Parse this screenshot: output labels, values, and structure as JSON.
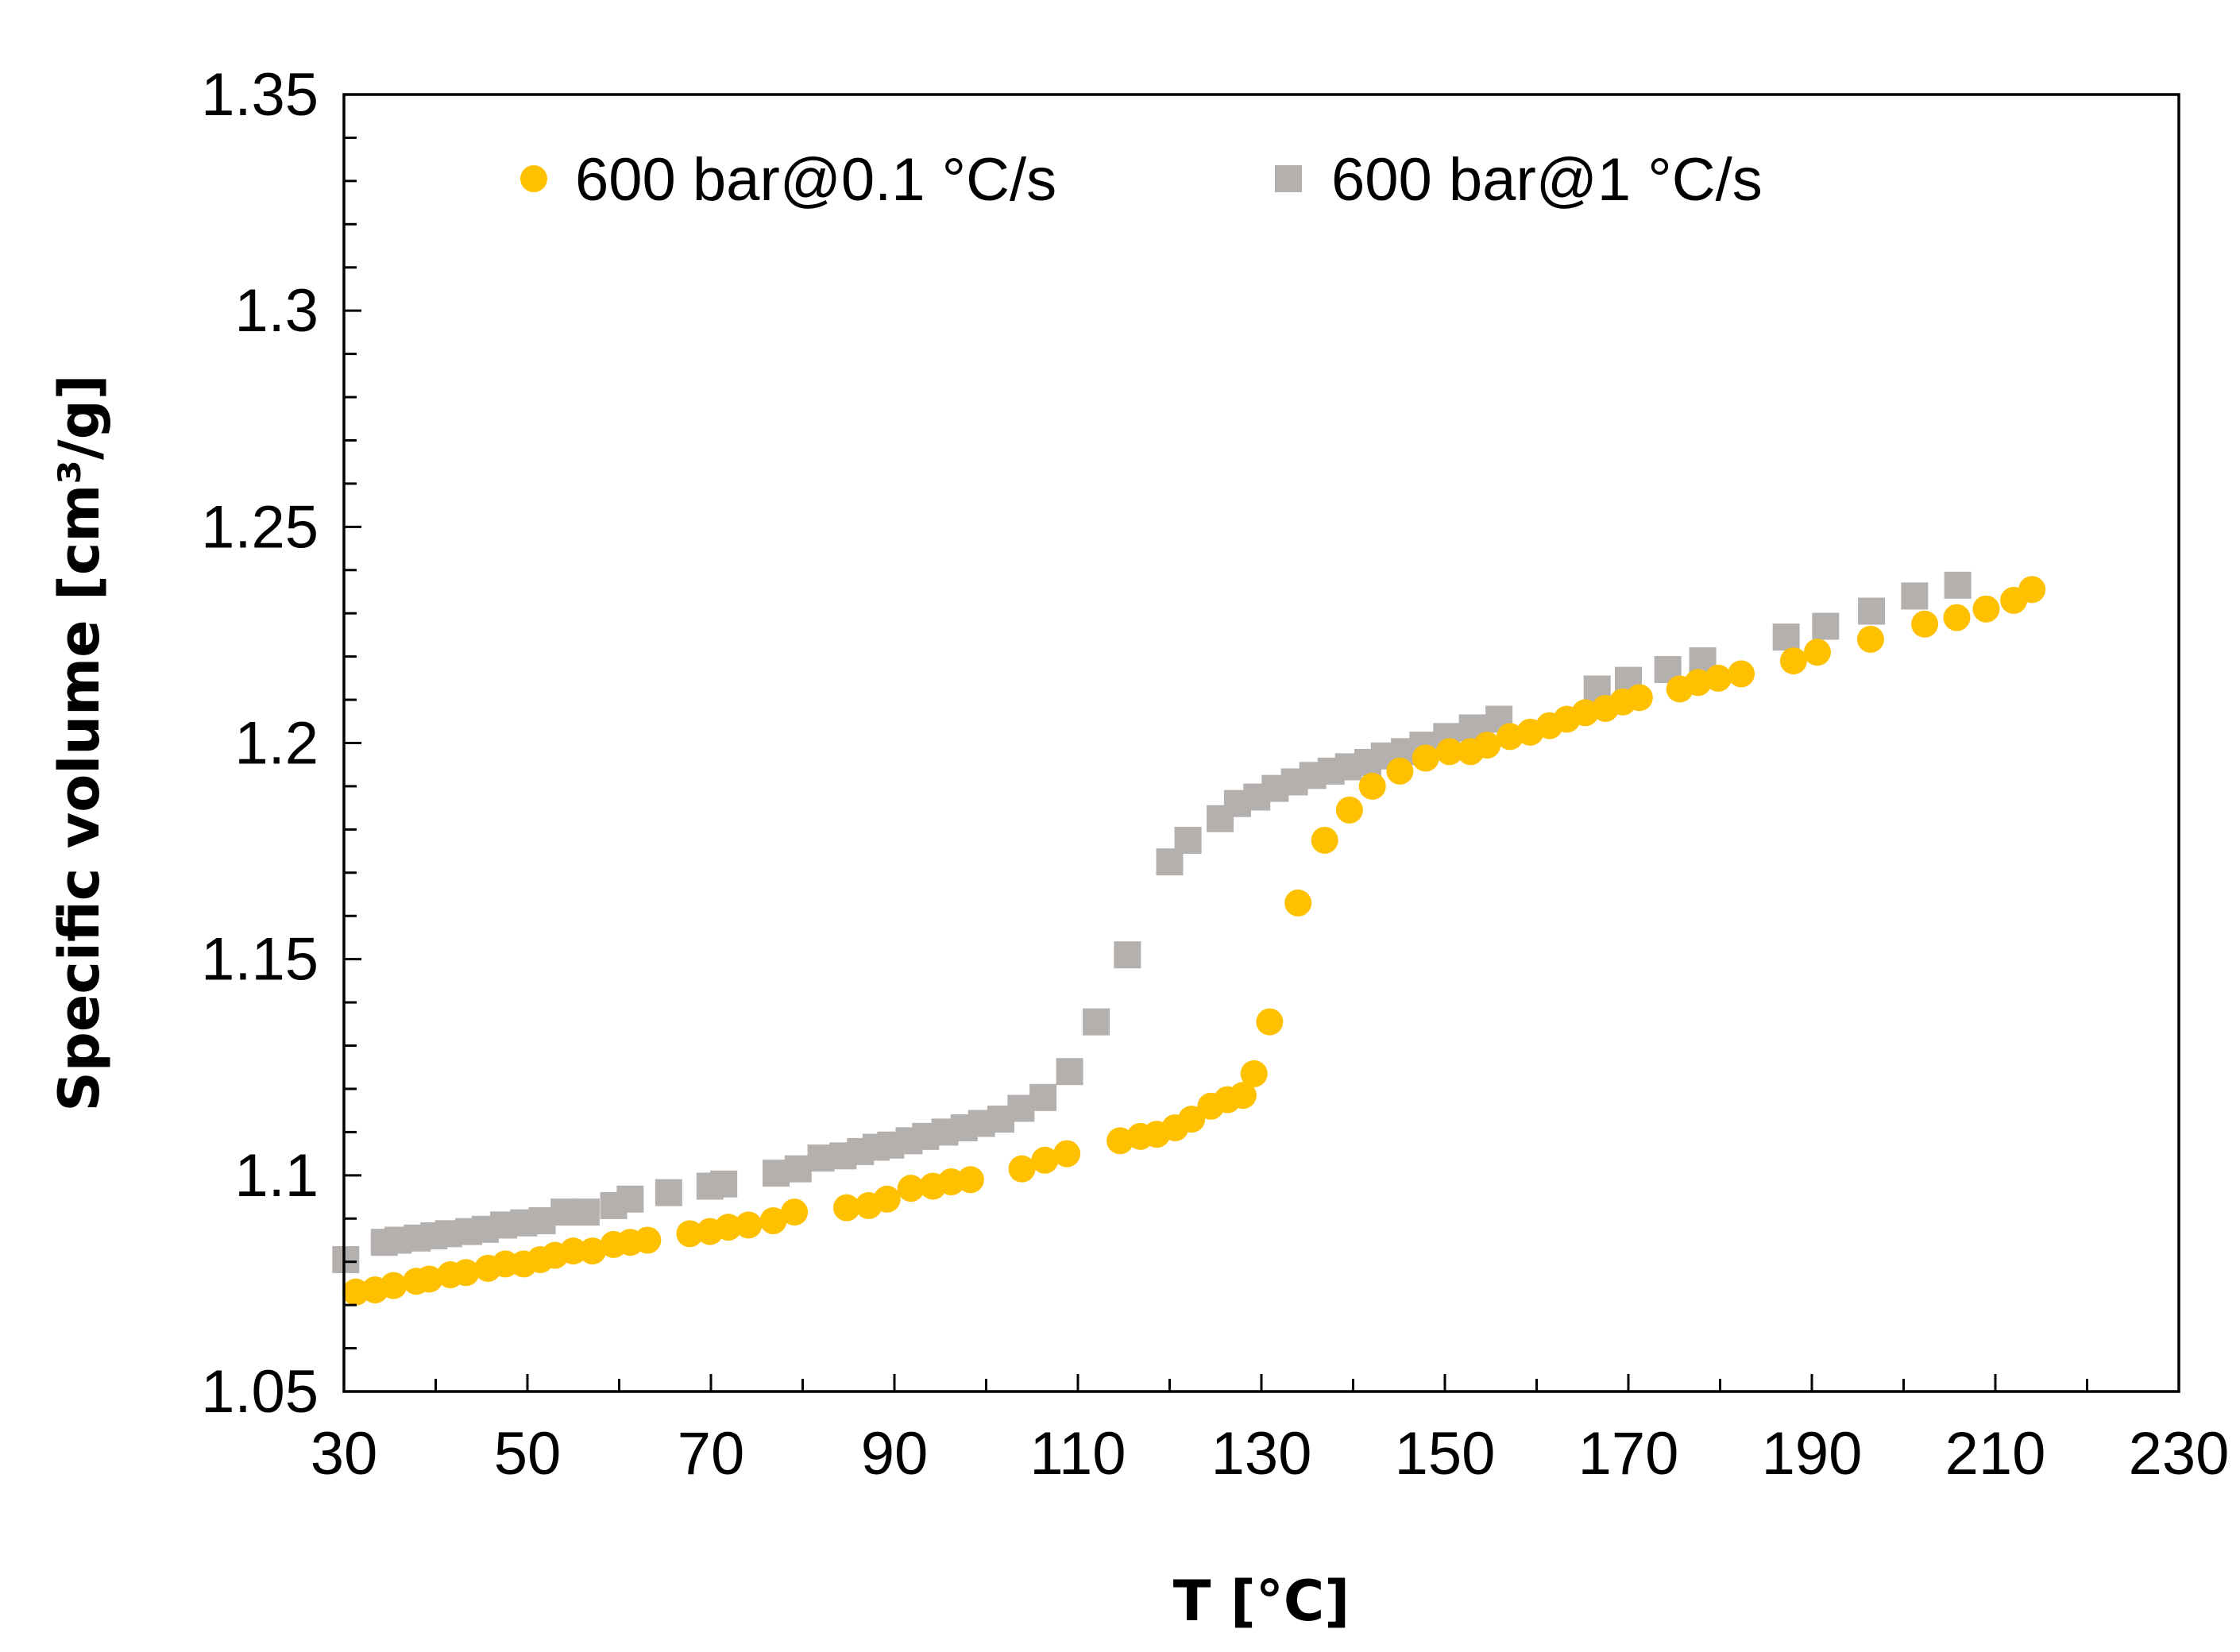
{
  "chart_data": {
    "type": "scatter",
    "title": "",
    "xlabel": "T [°C]",
    "ylabel": "Specific volume [cm³/g]",
    "xlim": [
      30,
      230
    ],
    "ylim": [
      1.05,
      1.35
    ],
    "grid": false,
    "legend_position": "top",
    "x_tick_labels": [
      "30",
      "50",
      "70",
      "90",
      "110",
      "130",
      "150",
      "170",
      "190",
      "210",
      "230"
    ],
    "y_tick_labels": [
      "1.05",
      "1.1",
      "1.15",
      "1.2",
      "1.25",
      "1.3",
      "1.35"
    ],
    "series": [
      {
        "name": "600 bar@0.1 °C/s",
        "marker": "circle",
        "color": "#FFC000",
        "points": [
          [
            31.3,
            1.073
          ],
          [
            33.4,
            1.0735
          ],
          [
            35.4,
            1.0745
          ],
          [
            37.9,
            1.0755
          ],
          [
            39.3,
            1.076
          ],
          [
            41.6,
            1.077
          ],
          [
            43.3,
            1.0775
          ],
          [
            45.7,
            1.0785
          ],
          [
            47.6,
            1.0795
          ],
          [
            49.6,
            1.0795
          ],
          [
            51.4,
            1.0805
          ],
          [
            53.0,
            1.0815
          ],
          [
            55.0,
            1.0825
          ],
          [
            57.1,
            1.0825
          ],
          [
            59.4,
            1.084
          ],
          [
            61.2,
            1.0845
          ],
          [
            63.1,
            1.085
          ],
          [
            67.7,
            1.0865
          ],
          [
            69.9,
            1.087
          ],
          [
            71.9,
            1.088
          ],
          [
            74.1,
            1.0885
          ],
          [
            76.8,
            1.0895
          ],
          [
            79.1,
            1.0915
          ],
          [
            84.8,
            1.0925
          ],
          [
            87.2,
            1.093
          ],
          [
            89.2,
            1.0945
          ],
          [
            91.8,
            1.097
          ],
          [
            94.2,
            1.0975
          ],
          [
            96.2,
            1.0985
          ],
          [
            98.3,
            1.099
          ],
          [
            103.9,
            1.1015
          ],
          [
            106.4,
            1.1035
          ],
          [
            108.8,
            1.105
          ],
          [
            114.6,
            1.108
          ],
          [
            116.8,
            1.109
          ],
          [
            118.6,
            1.1095
          ],
          [
            120.6,
            1.111
          ],
          [
            122.4,
            1.113
          ],
          [
            124.5,
            1.116
          ],
          [
            126.3,
            1.1175
          ],
          [
            128.0,
            1.1185
          ],
          [
            129.2,
            1.1235
          ],
          [
            130.9,
            1.1355
          ],
          [
            134.0,
            1.163
          ],
          [
            136.9,
            1.1775
          ],
          [
            139.6,
            1.1845
          ],
          [
            142.1,
            1.19
          ],
          [
            145.1,
            1.1935
          ],
          [
            147.9,
            1.1965
          ],
          [
            150.5,
            1.198
          ],
          [
            152.8,
            1.198
          ],
          [
            154.6,
            1.1995
          ],
          [
            157.1,
            1.2015
          ],
          [
            159.3,
            1.2025
          ],
          [
            161.4,
            1.204
          ],
          [
            163.3,
            1.2055
          ],
          [
            165.3,
            1.207
          ],
          [
            167.5,
            1.208
          ],
          [
            169.4,
            1.2095
          ],
          [
            171.2,
            1.2105
          ],
          [
            175.6,
            1.2125
          ],
          [
            177.6,
            1.214
          ],
          [
            179.8,
            1.215
          ],
          [
            182.3,
            1.216
          ],
          [
            188.0,
            1.219
          ],
          [
            190.6,
            1.221
          ],
          [
            196.4,
            1.224
          ],
          [
            202.3,
            1.2275
          ],
          [
            205.8,
            1.229
          ],
          [
            209.0,
            1.231
          ],
          [
            212.0,
            1.233
          ],
          [
            214.0,
            1.2355
          ]
        ]
      },
      {
        "name": "600 bar@1 °C/s",
        "marker": "square",
        "color": "#B4B0AE",
        "points": [
          [
            30.2,
            1.0805
          ],
          [
            34.4,
            1.0845
          ],
          [
            35.9,
            1.085
          ],
          [
            38.0,
            1.0855
          ],
          [
            39.8,
            1.086
          ],
          [
            41.4,
            1.0865
          ],
          [
            43.6,
            1.087
          ],
          [
            45.4,
            1.0875
          ],
          [
            47.4,
            1.0885
          ],
          [
            49.6,
            1.089
          ],
          [
            51.6,
            1.0895
          ],
          [
            54.0,
            1.0915
          ],
          [
            56.4,
            1.0915
          ],
          [
            59.4,
            1.093
          ],
          [
            61.2,
            1.0945
          ],
          [
            65.4,
            1.096
          ],
          [
            69.9,
            1.0975
          ],
          [
            71.4,
            1.098
          ],
          [
            77.1,
            1.1005
          ],
          [
            79.5,
            1.1015
          ],
          [
            82.0,
            1.104
          ],
          [
            84.4,
            1.1045
          ],
          [
            86.3,
            1.1055
          ],
          [
            88.0,
            1.1065
          ],
          [
            89.6,
            1.107
          ],
          [
            91.6,
            1.108
          ],
          [
            93.4,
            1.109
          ],
          [
            95.5,
            1.11
          ],
          [
            97.6,
            1.111
          ],
          [
            99.5,
            1.112
          ],
          [
            101.6,
            1.113
          ],
          [
            103.8,
            1.1155
          ],
          [
            106.2,
            1.118
          ],
          [
            109.1,
            1.124
          ],
          [
            112.0,
            1.1355
          ],
          [
            115.4,
            1.151
          ],
          [
            120.0,
            1.1725
          ],
          [
            122.0,
            1.1775
          ],
          [
            125.5,
            1.1825
          ],
          [
            127.4,
            1.186
          ],
          [
            129.5,
            1.1875
          ],
          [
            131.5,
            1.1895
          ],
          [
            133.6,
            1.191
          ],
          [
            135.6,
            1.1925
          ],
          [
            137.6,
            1.1935
          ],
          [
            139.5,
            1.1945
          ],
          [
            141.6,
            1.1955
          ],
          [
            143.4,
            1.197
          ],
          [
            145.6,
            1.198
          ],
          [
            147.6,
            1.1995
          ],
          [
            150.2,
            1.2015
          ],
          [
            153.0,
            1.2035
          ],
          [
            155.9,
            1.2055
          ],
          [
            166.6,
            1.2125
          ],
          [
            170.0,
            1.2145
          ],
          [
            174.3,
            1.217
          ],
          [
            178.1,
            1.219
          ],
          [
            187.2,
            1.2245
          ],
          [
            191.5,
            1.227
          ],
          [
            196.5,
            1.2305
          ],
          [
            201.2,
            1.234
          ],
          [
            205.9,
            1.2365
          ]
        ]
      }
    ]
  }
}
